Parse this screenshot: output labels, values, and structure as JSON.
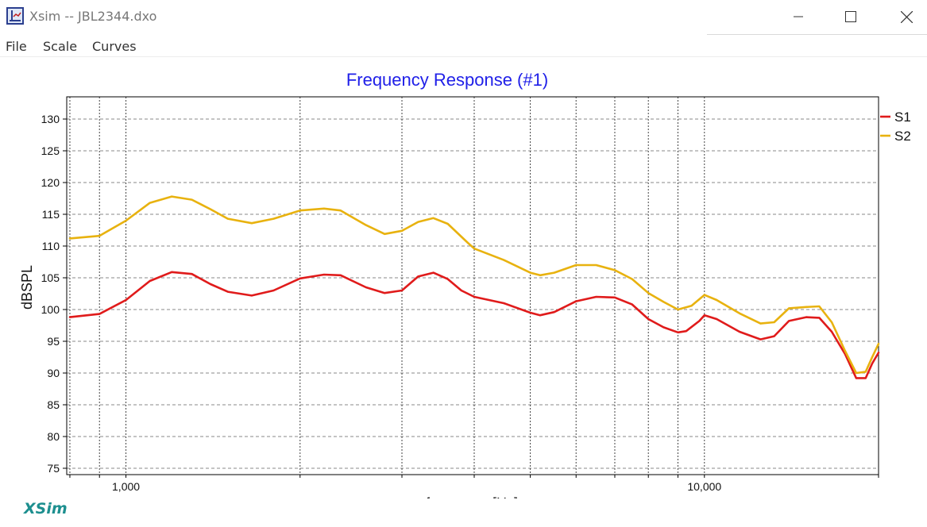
{
  "window": {
    "title": "Xsim -- JBL2344.dxo",
    "minimize_icon": "minimize-icon",
    "maximize_icon": "maximize-icon",
    "close_icon": "close-icon"
  },
  "menu": {
    "items": [
      "File",
      "Scale",
      "Curves"
    ]
  },
  "brand": "XSim",
  "chart_data": {
    "type": "line",
    "title": "Frequency Response (#1)",
    "xlabel": "frequency [Hz]",
    "ylabel": "dBSPL",
    "x_scale": "log",
    "xlim": [
      790,
      20000
    ],
    "ylim": [
      74,
      133.5
    ],
    "x_ticks": [
      {
        "value": 1000,
        "label": "1,000"
      },
      {
        "value": 10000,
        "label": "10,000"
      }
    ],
    "y_ticks": [
      75,
      80,
      85,
      90,
      95,
      100,
      105,
      110,
      115,
      120,
      125,
      130
    ],
    "grid": true,
    "legend_position": "right",
    "title_color": "#2020e8",
    "series": [
      {
        "name": "S1",
        "color": "#e01b1b",
        "points": [
          [
            800,
            98.8
          ],
          [
            900,
            99.3
          ],
          [
            1000,
            101.5
          ],
          [
            1100,
            104.5
          ],
          [
            1200,
            105.9
          ],
          [
            1300,
            105.6
          ],
          [
            1400,
            104
          ],
          [
            1500,
            102.8
          ],
          [
            1650,
            102.2
          ],
          [
            1800,
            103
          ],
          [
            2000,
            104.9
          ],
          [
            2200,
            105.5
          ],
          [
            2350,
            105.4
          ],
          [
            2600,
            103.5
          ],
          [
            2800,
            102.6
          ],
          [
            3000,
            103
          ],
          [
            3200,
            105.2
          ],
          [
            3400,
            105.8
          ],
          [
            3600,
            104.8
          ],
          [
            3800,
            103
          ],
          [
            4000,
            102
          ],
          [
            4500,
            101
          ],
          [
            5000,
            99.5
          ],
          [
            5200,
            99.1
          ],
          [
            5500,
            99.6
          ],
          [
            6000,
            101.3
          ],
          [
            6500,
            102
          ],
          [
            7000,
            101.9
          ],
          [
            7500,
            100.8
          ],
          [
            8000,
            98.5
          ],
          [
            8500,
            97.2
          ],
          [
            9000,
            96.4
          ],
          [
            9300,
            96.6
          ],
          [
            9800,
            98.2
          ],
          [
            10000,
            99.1
          ],
          [
            10500,
            98.5
          ],
          [
            11500,
            96.5
          ],
          [
            12500,
            95.3
          ],
          [
            13200,
            95.8
          ],
          [
            14000,
            98.2
          ],
          [
            15000,
            98.8
          ],
          [
            15800,
            98.7
          ],
          [
            16600,
            96.5
          ],
          [
            17500,
            93
          ],
          [
            18300,
            89.2
          ],
          [
            19000,
            89.2
          ],
          [
            19500,
            91.5
          ],
          [
            20000,
            93.2
          ]
        ]
      },
      {
        "name": "S2",
        "color": "#e8b20f",
        "points": [
          [
            800,
            111.2
          ],
          [
            900,
            111.6
          ],
          [
            1000,
            114
          ],
          [
            1100,
            116.8
          ],
          [
            1200,
            117.8
          ],
          [
            1300,
            117.3
          ],
          [
            1400,
            115.8
          ],
          [
            1500,
            114.3
          ],
          [
            1650,
            113.6
          ],
          [
            1800,
            114.3
          ],
          [
            2000,
            115.6
          ],
          [
            2200,
            115.9
          ],
          [
            2350,
            115.6
          ],
          [
            2600,
            113.3
          ],
          [
            2800,
            111.9
          ],
          [
            3000,
            112.4
          ],
          [
            3200,
            113.8
          ],
          [
            3400,
            114.4
          ],
          [
            3600,
            113.5
          ],
          [
            3900,
            110.5
          ],
          [
            4000,
            109.6
          ],
          [
            4500,
            107.8
          ],
          [
            5000,
            105.8
          ],
          [
            5200,
            105.4
          ],
          [
            5500,
            105.8
          ],
          [
            6000,
            107
          ],
          [
            6500,
            107
          ],
          [
            7000,
            106.2
          ],
          [
            7500,
            104.8
          ],
          [
            8000,
            102.6
          ],
          [
            8500,
            101.2
          ],
          [
            9000,
            100
          ],
          [
            9500,
            100.6
          ],
          [
            10000,
            102.3
          ],
          [
            10500,
            101.5
          ],
          [
            11500,
            99.4
          ],
          [
            12500,
            97.8
          ],
          [
            13200,
            98
          ],
          [
            14000,
            100.2
          ],
          [
            15000,
            100.4
          ],
          [
            15800,
            100.5
          ],
          [
            16600,
            98
          ],
          [
            17500,
            93.5
          ],
          [
            18300,
            90
          ],
          [
            19000,
            90.2
          ],
          [
            19500,
            92.5
          ],
          [
            20000,
            94.6
          ]
        ]
      }
    ]
  }
}
